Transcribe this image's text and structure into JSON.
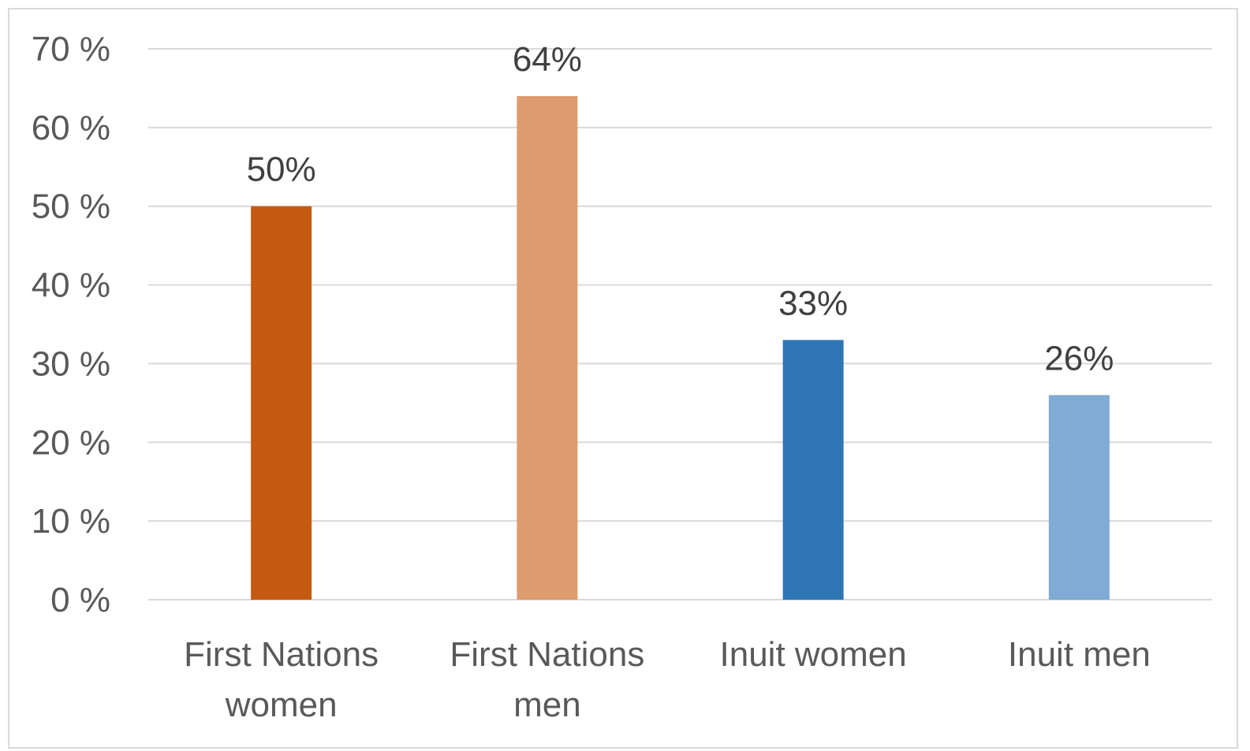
{
  "chart_data": {
    "type": "bar",
    "title": "",
    "xlabel": "",
    "ylabel": "",
    "ylim": [
      0,
      70
    ],
    "y_ticks": [
      0,
      10,
      20,
      30,
      40,
      50,
      60,
      70
    ],
    "y_tick_labels": [
      "0 %",
      "10 %",
      "20 %",
      "30 %",
      "40 %",
      "50 %",
      "60 %",
      "70 %"
    ],
    "grid": true,
    "legend": "none",
    "categories": [
      [
        "First Nations",
        "women"
      ],
      [
        "First Nations",
        "men"
      ],
      [
        "Inuit women"
      ],
      [
        "Inuit men"
      ]
    ],
    "values": [
      50,
      64,
      33,
      26
    ],
    "data_labels": [
      "50%",
      "64%",
      "33%",
      "26%"
    ],
    "colors": [
      "#C55A11",
      "#DE9B6E",
      "#2E75B6",
      "#7FABD5"
    ]
  }
}
